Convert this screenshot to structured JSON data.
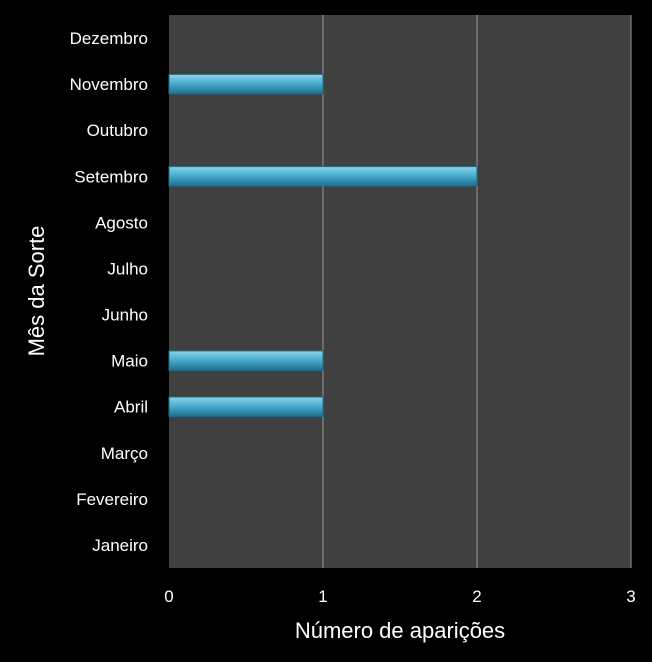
{
  "chart_data": {
    "type": "bar",
    "orientation": "horizontal",
    "categories": [
      "Janeiro",
      "Fevereiro",
      "Março",
      "Abril",
      "Maio",
      "Junho",
      "Julho",
      "Agosto",
      "Setembro",
      "Outubro",
      "Novembro",
      "Dezembro"
    ],
    "values": [
      0,
      0,
      0,
      1,
      1,
      0,
      0,
      0,
      2,
      0,
      1,
      0
    ],
    "xlabel": "Número de aparições",
    "ylabel": "Mês da Sorte",
    "xlim": [
      0,
      3
    ],
    "x_ticks": [
      "0",
      "1",
      "2",
      "3"
    ],
    "grid": "vertical",
    "colors": {
      "background": "#000000",
      "plot_area": "#404040",
      "gridline": "#9a9a9a",
      "bar": "#4aaed0",
      "bar_light": "#8fd3ea",
      "bar_dark": "#1f6f8c",
      "text": "#ffffff"
    }
  }
}
